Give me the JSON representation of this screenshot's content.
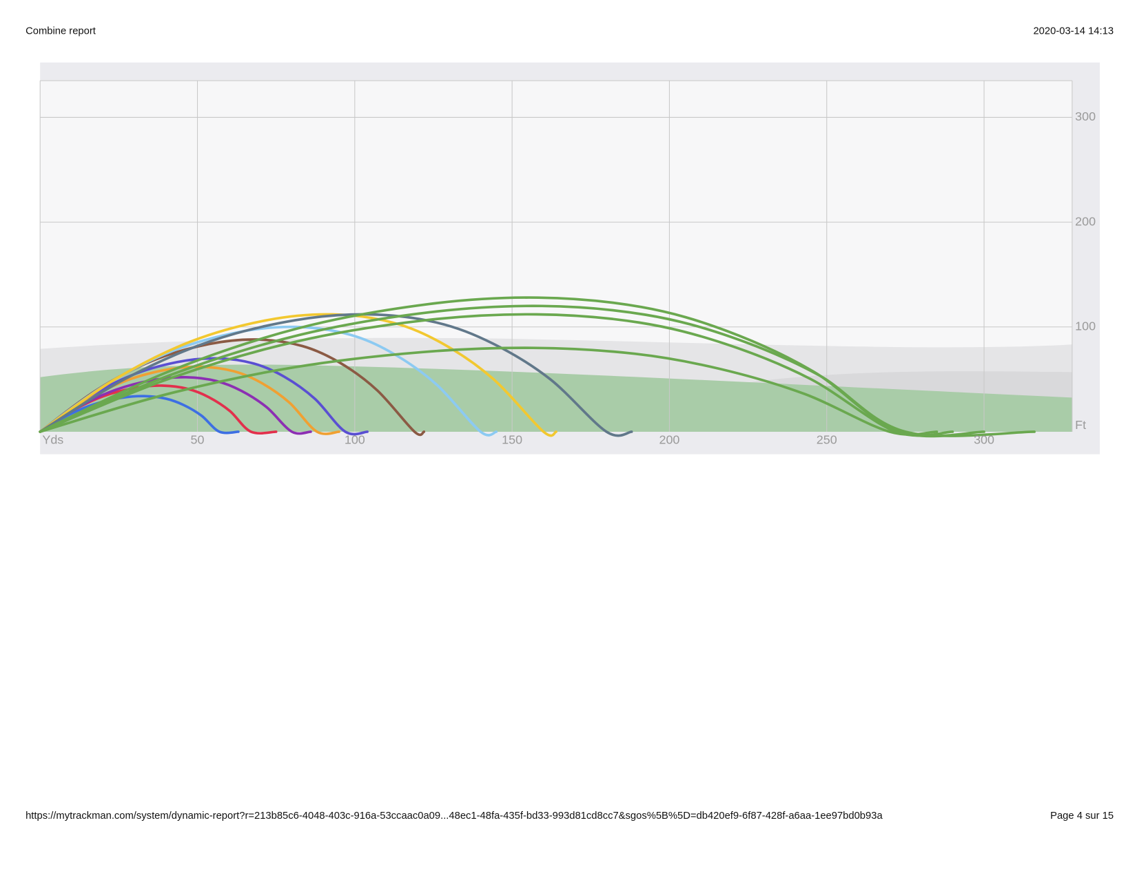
{
  "header": {
    "title": "Combine report",
    "datetime": "2020-03-14 14:13"
  },
  "footer": {
    "url": "https://mytrackman.com/system/dynamic-report?r=213b85c6-4048-403c-916a-53ccaac0a09...48ec1-48fa-435f-bd33-993d81cd8cc7&sgos%5B%5D=db420ef9-6f87-428f-a6aa-1ee97bd0b93a",
    "page": "Page 4 sur 15"
  },
  "chart_data": {
    "type": "line",
    "x_label": "Yds",
    "y_label": "Ft",
    "xlim": [
      0,
      328
    ],
    "ylim": [
      0,
      335
    ],
    "xticks": [
      50,
      100,
      150,
      200,
      250,
      300
    ],
    "yticks": [
      100,
      200,
      300
    ],
    "grid": true,
    "series": [
      {
        "color": "#3d6fe3",
        "x": [
          0,
          8.6,
          17.1,
          25.7,
          33.1,
          39.9,
          45.6,
          51.3,
          57,
          63
        ],
        "values": [
          0,
          15.3,
          26.2,
          32.3,
          34,
          31.6,
          25.5,
          15.3,
          0,
          0
        ]
      },
      {
        "color": "#e2304c",
        "x": [
          0,
          10.1,
          20.1,
          30.2,
          38.9,
          46.9,
          53.6,
          60.3,
          67,
          75
        ],
        "values": [
          0,
          19.8,
          33.9,
          41.8,
          44,
          40.9,
          33,
          19.8,
          0,
          0
        ]
      },
      {
        "color": "#8c2fb3",
        "x": [
          0,
          12,
          24,
          36,
          46.4,
          56,
          64,
          72,
          80,
          86
        ],
        "values": [
          0,
          23.4,
          40,
          49.4,
          52,
          48.4,
          39,
          23.4,
          0,
          0
        ]
      },
      {
        "color": "#f0a032",
        "x": [
          0,
          13.2,
          26.4,
          39.6,
          51,
          61.6,
          70.4,
          79.2,
          88,
          95
        ],
        "values": [
          0,
          27.9,
          47.7,
          58.9,
          62,
          57.7,
          46.5,
          27.9,
          0,
          0
        ]
      },
      {
        "color": "#5a4fd2",
        "x": [
          0,
          14.6,
          29.1,
          43.7,
          56.3,
          67.9,
          77.6,
          87.3,
          97,
          104
        ],
        "values": [
          0,
          31.5,
          53.9,
          66.5,
          70,
          65.1,
          52.5,
          31.5,
          0,
          0
        ]
      },
      {
        "color": "#8b5a44",
        "x": [
          0,
          17.9,
          35.7,
          53.6,
          69,
          83.3,
          95.2,
          107.1,
          119,
          122
        ],
        "values": [
          0,
          39.6,
          67.8,
          83.6,
          88,
          81.8,
          66,
          39.6,
          0,
          0
        ]
      },
      {
        "color": "#8ccaf2",
        "x": [
          0,
          21,
          42,
          63,
          81.2,
          98,
          112,
          126,
          140,
          145
        ],
        "values": [
          0,
          45,
          77,
          95,
          100,
          93,
          75,
          45,
          0,
          0
        ]
      },
      {
        "color": "#f2c830",
        "x": [
          0,
          24,
          48,
          72,
          92.8,
          112,
          128,
          144,
          160,
          164
        ],
        "values": [
          0,
          50.4,
          86.2,
          106.4,
          112,
          104.2,
          84,
          50.4,
          0,
          0
        ]
      },
      {
        "color": "#61788a",
        "x": [
          0,
          27,
          54,
          81,
          104.4,
          126,
          144,
          162,
          180,
          188
        ],
        "values": [
          0,
          50.4,
          86.2,
          106.4,
          112,
          104.2,
          84,
          50.4,
          0,
          0
        ]
      },
      {
        "color": "#6aa84f",
        "x": [
          0,
          41,
          81.9,
          122.9,
          158.3,
          191.1,
          218.4,
          245.7,
          273,
          300
        ],
        "values": [
          0,
          57.6,
          98.6,
          121.6,
          128,
          119,
          96,
          57.6,
          0,
          0
        ]
      },
      {
        "color": "#6aa84f",
        "x": [
          0,
          41.3,
          82.5,
          123.8,
          159.5,
          192.5,
          220,
          247.5,
          275,
          316
        ],
        "values": [
          0,
          54,
          92.4,
          114,
          120,
          111.6,
          90,
          54,
          0,
          0
        ]
      },
      {
        "color": "#6aa84f",
        "x": [
          0,
          40.8,
          81.6,
          122.4,
          157.8,
          190.4,
          217.6,
          244.8,
          272,
          290
        ],
        "values": [
          0,
          50.4,
          86.2,
          106.4,
          112,
          104.2,
          84,
          50.4,
          0,
          0
        ]
      },
      {
        "color": "#6aa84f",
        "x": [
          0,
          40.5,
          81,
          121.5,
          156.6,
          189,
          216,
          243,
          270,
          285
        ],
        "values": [
          0,
          36,
          61.6,
          76,
          80,
          74.4,
          60,
          36,
          0,
          0
        ]
      }
    ]
  }
}
